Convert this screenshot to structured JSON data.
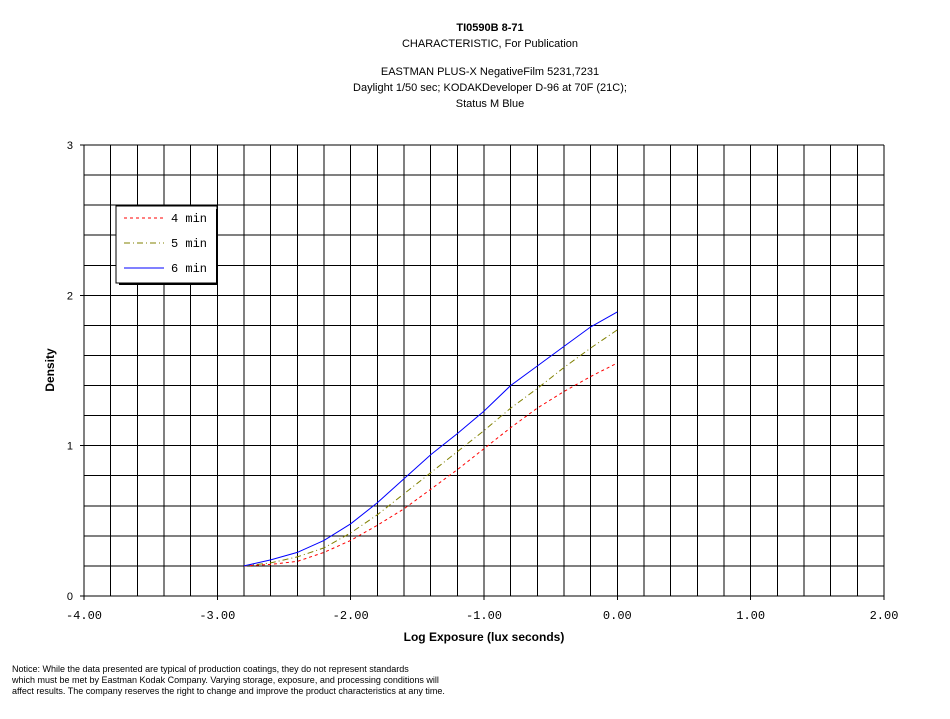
{
  "header": {
    "line1": "TI0590B 8-71",
    "line2": "CHARACTERISTIC, For Publication",
    "line3": "EASTMAN PLUS-X NegativeFilm 5231,7231",
    "line4": "Daylight 1/50 sec; KODAKDeveloper D-96 at 70F (21C);",
    "line5": "Status M Blue"
  },
  "notice": [
    "Notice: While the data presented are typical of production coatings, they do not represent standards",
    "which must be met by Eastman Kodak Company.  Varying storage, exposure, and processing conditions will",
    "affect results.  The company reserves the right to change and improve the product characteristics at any time."
  ],
  "chart_data": {
    "type": "line",
    "xlabel": "Log Exposure (lux seconds)",
    "ylabel": "Density",
    "xlim": [
      -4.0,
      2.0
    ],
    "ylim": [
      0,
      3
    ],
    "xticks": [
      "-4.00",
      "-3.00",
      "-2.00",
      "-1.00",
      "0.00",
      "1.00",
      "2.00"
    ],
    "yticks": [
      "0",
      "1",
      "2",
      "3"
    ],
    "grid": true,
    "legend_position": "top-left",
    "series": [
      {
        "name": "4 min",
        "color": "#ff0000",
        "style": "dash",
        "x": [
          -2.8,
          -2.6,
          -2.4,
          -2.2,
          -2.0,
          -1.8,
          -1.6,
          -1.4,
          -1.2,
          -1.0,
          -0.8,
          -0.6,
          -0.4,
          -0.2,
          0.0
        ],
        "y": [
          0.2,
          0.21,
          0.23,
          0.29,
          0.37,
          0.47,
          0.58,
          0.71,
          0.84,
          0.98,
          1.12,
          1.25,
          1.36,
          1.46,
          1.55
        ]
      },
      {
        "name": "5 min",
        "color": "#808000",
        "style": "dashdot",
        "x": [
          -2.8,
          -2.6,
          -2.4,
          -2.2,
          -2.0,
          -1.8,
          -1.6,
          -1.4,
          -1.2,
          -1.0,
          -0.8,
          -0.6,
          -0.4,
          -0.2,
          0.0
        ],
        "y": [
          0.2,
          0.22,
          0.26,
          0.32,
          0.42,
          0.54,
          0.68,
          0.82,
          0.96,
          1.1,
          1.25,
          1.38,
          1.52,
          1.65,
          1.77
        ]
      },
      {
        "name": "6 min",
        "color": "#0000ff",
        "style": "solid",
        "x": [
          -2.8,
          -2.6,
          -2.4,
          -2.2,
          -2.0,
          -1.8,
          -1.6,
          -1.4,
          -1.2,
          -1.0,
          -0.8,
          -0.6,
          -0.4,
          -0.2,
          0.0
        ],
        "y": [
          0.2,
          0.24,
          0.29,
          0.37,
          0.48,
          0.62,
          0.78,
          0.94,
          1.08,
          1.23,
          1.4,
          1.53,
          1.66,
          1.79,
          1.89
        ]
      }
    ]
  }
}
